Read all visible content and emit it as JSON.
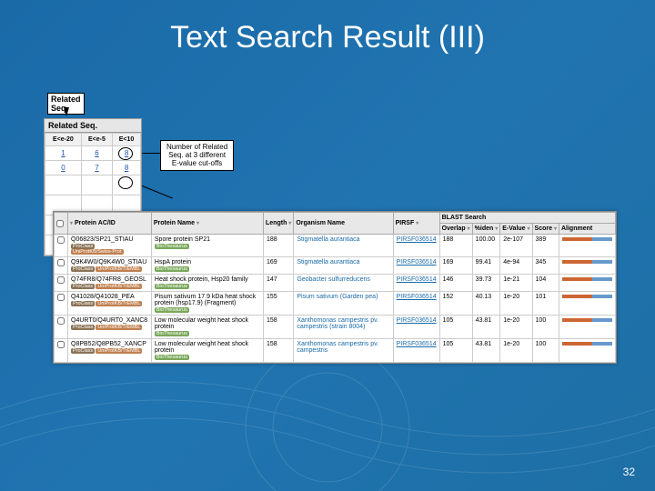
{
  "slide": {
    "title": "Text Search Result (III)",
    "page_number": "32"
  },
  "labels": {
    "related_seq": "Related\nSeq.",
    "callout": "Number of Related\nSeq. at 3 different\nE-value cut-offs"
  },
  "related_panel": {
    "header": "Related Seq.",
    "cols": [
      "E<e-20",
      "E<e-5",
      "E<10"
    ],
    "rows": [
      [
        "1",
        "6",
        "8"
      ],
      [
        "0",
        "7",
        "8"
      ],
      [
        "",
        "",
        ""
      ],
      [
        "",
        "",
        ""
      ],
      [
        "",
        "",
        ""
      ],
      [
        "",
        "",
        ""
      ]
    ]
  },
  "main_table": {
    "headers": {
      "chk": "",
      "acid": "Protein AC/ID",
      "name": "Protein Name",
      "length": "Length",
      "organism": "Organism Name",
      "pirsf": "PIRSF",
      "blast_group": "BLAST Search",
      "overlap": "Overlap",
      "iden": "%iden",
      "evalue": "E-Value",
      "score": "Score",
      "alignment": "Alignment"
    },
    "rows": [
      {
        "acid": "Q06823/SP21_STIAU",
        "tags": [
          "ProClass",
          "UniProtKB/Swiss-Prot"
        ],
        "name": "Spore protein SP21",
        "name_tag": "BioThesaurus",
        "length": "188",
        "organism": "Stigmatella aurantiaca",
        "pirsf": "PIRSF036514",
        "overlap": "188",
        "iden": "100.00",
        "evalue": "2e-107",
        "score": "389"
      },
      {
        "acid": "Q9K4W0/Q9K4W0_STIAU",
        "tags": [
          "ProClass",
          "UniProtKB/TrEMBL"
        ],
        "name": "HspA protein",
        "name_tag": "BioThesaurus",
        "length": "169",
        "organism": "Stigmatella aurantiaca",
        "pirsf": "PIRSF036514",
        "overlap": "169",
        "iden": "99.41",
        "evalue": "4e-94",
        "score": "345"
      },
      {
        "acid": "Q74FR8/Q74FR8_GEOSL",
        "tags": [
          "ProClass",
          "UniProtKB/TrEMBL"
        ],
        "name": "Heat shock protein, Hsp20 family",
        "name_tag": "BioThesaurus",
        "length": "147",
        "organism": "Geobacter sulfurreducens",
        "pirsf": "PIRSF036514",
        "overlap": "146",
        "iden": "39.73",
        "evalue": "1e-21",
        "score": "104"
      },
      {
        "acid": "Q41028/Q41028_PEA",
        "tags": [
          "ProClass",
          "UniProtKB/TrEMBL"
        ],
        "name": "Pisum sativum 17.9 kDa heat shock protein (hsp17.9) (Fragment)",
        "name_tag": "BioThesaurus",
        "length": "155",
        "organism": "Pisum sativum (Garden pea)",
        "pirsf": "PIRSF036514",
        "overlap": "152",
        "iden": "40.13",
        "evalue": "1e-20",
        "score": "101"
      },
      {
        "acid": "Q4URT0/Q4URT0_XANC8",
        "tags": [
          "ProClass",
          "UniProtKB/TrEMBL"
        ],
        "name": "Low molecular weight heat shock protein",
        "name_tag": "BioThesaurus",
        "length": "158",
        "organism": "Xanthomonas campestris pv. campestris (strain 8004)",
        "pirsf": "PIRSF036514",
        "overlap": "105",
        "iden": "43.81",
        "evalue": "1e-20",
        "score": "100"
      },
      {
        "acid": "Q8PB52/Q8PB52_XANCP",
        "tags": [
          "ProClass",
          "UniProtKB/TrEMBL"
        ],
        "name": "Low molecular weight heat shock protein",
        "name_tag": "BioThesaurus",
        "length": "158",
        "organism": "Xanthomonas campestris pv. campestris",
        "pirsf": "PIRSF036514",
        "overlap": "105",
        "iden": "43.81",
        "evalue": "1e-20",
        "score": "100"
      }
    ]
  }
}
